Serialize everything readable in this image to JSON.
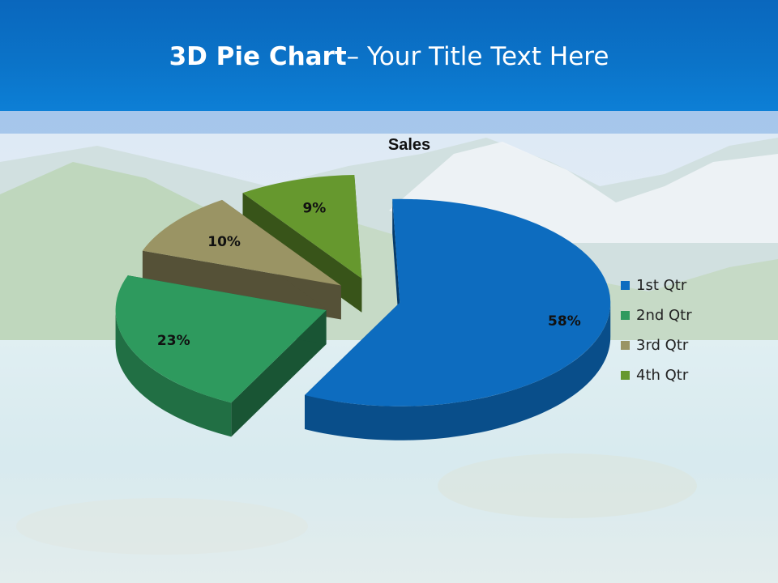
{
  "slide": {
    "title_bold": "3D Pie Chart",
    "title_rest": "– Your Title Text Here"
  },
  "chart_data": {
    "type": "pie",
    "title": "Sales",
    "three_d": true,
    "exploded": true,
    "categories": [
      "1st Qtr",
      "2nd Qtr",
      "3rd Qtr",
      "4th Qtr"
    ],
    "values": [
      58,
      23,
      10,
      9
    ],
    "value_labels": [
      "58%",
      "23%",
      "10%",
      "9%"
    ],
    "colors": [
      "#0d6cbf",
      "#2e9a5e",
      "#9a9464",
      "#66982e"
    ],
    "legend_position": "right"
  }
}
